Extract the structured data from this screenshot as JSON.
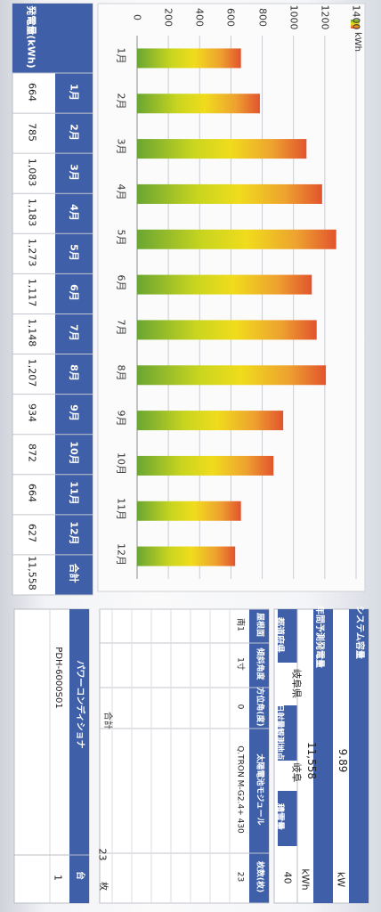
{
  "chart_data": {
    "type": "bar",
    "unit": "kWh",
    "ylim": [
      0,
      1400
    ],
    "yticks": [
      0,
      200,
      400,
      600,
      800,
      1000,
      1200,
      1400
    ],
    "categories": [
      "1月",
      "2月",
      "3月",
      "4月",
      "5月",
      "6月",
      "7月",
      "8月",
      "9月",
      "10月",
      "11月",
      "12月"
    ],
    "values": [
      664,
      785,
      1083,
      1183,
      1273,
      1117,
      1148,
      1207,
      934,
      872,
      664,
      627
    ],
    "grid": true
  },
  "table": {
    "row_label": "発電量(kWh)",
    "columns": [
      "1月",
      "2月",
      "3月",
      "4月",
      "5月",
      "6月",
      "7月",
      "8月",
      "9月",
      "10月",
      "11月",
      "12月",
      "合計"
    ],
    "values": [
      "664",
      "785",
      "1,083",
      "1,183",
      "1,273",
      "1,117",
      "1,148",
      "1,207",
      "934",
      "872",
      "664",
      "627",
      "11,558"
    ]
  },
  "system": {
    "capacity_label": "システム容量",
    "capacity_value": "9.89",
    "capacity_unit": "kW",
    "annual_label": "年間予測発電量",
    "annual_value": "11,558",
    "annual_unit": "kWh",
    "pref_label": "都道府県",
    "pref_value": "岐阜県",
    "sun_label": "日射量観測地点",
    "sun_value": "岐阜",
    "snow_label": "積雪量",
    "snow_value": "40"
  },
  "modules": {
    "headers": [
      "屋根面",
      "傾斜角度",
      "方位角(度)",
      "太陽電池モジュール",
      "枚数(枚)"
    ],
    "row": [
      "南1",
      "1寸",
      "0",
      "Q.TRON M-G2.4+ 430",
      "23"
    ],
    "total_label": "合計",
    "total_value": "23",
    "total_unit": "枚"
  },
  "pcs": {
    "header_name": "パワーコンディショナ",
    "header_count": "台",
    "row_name": "PDH-6000S01",
    "row_count": "1"
  }
}
